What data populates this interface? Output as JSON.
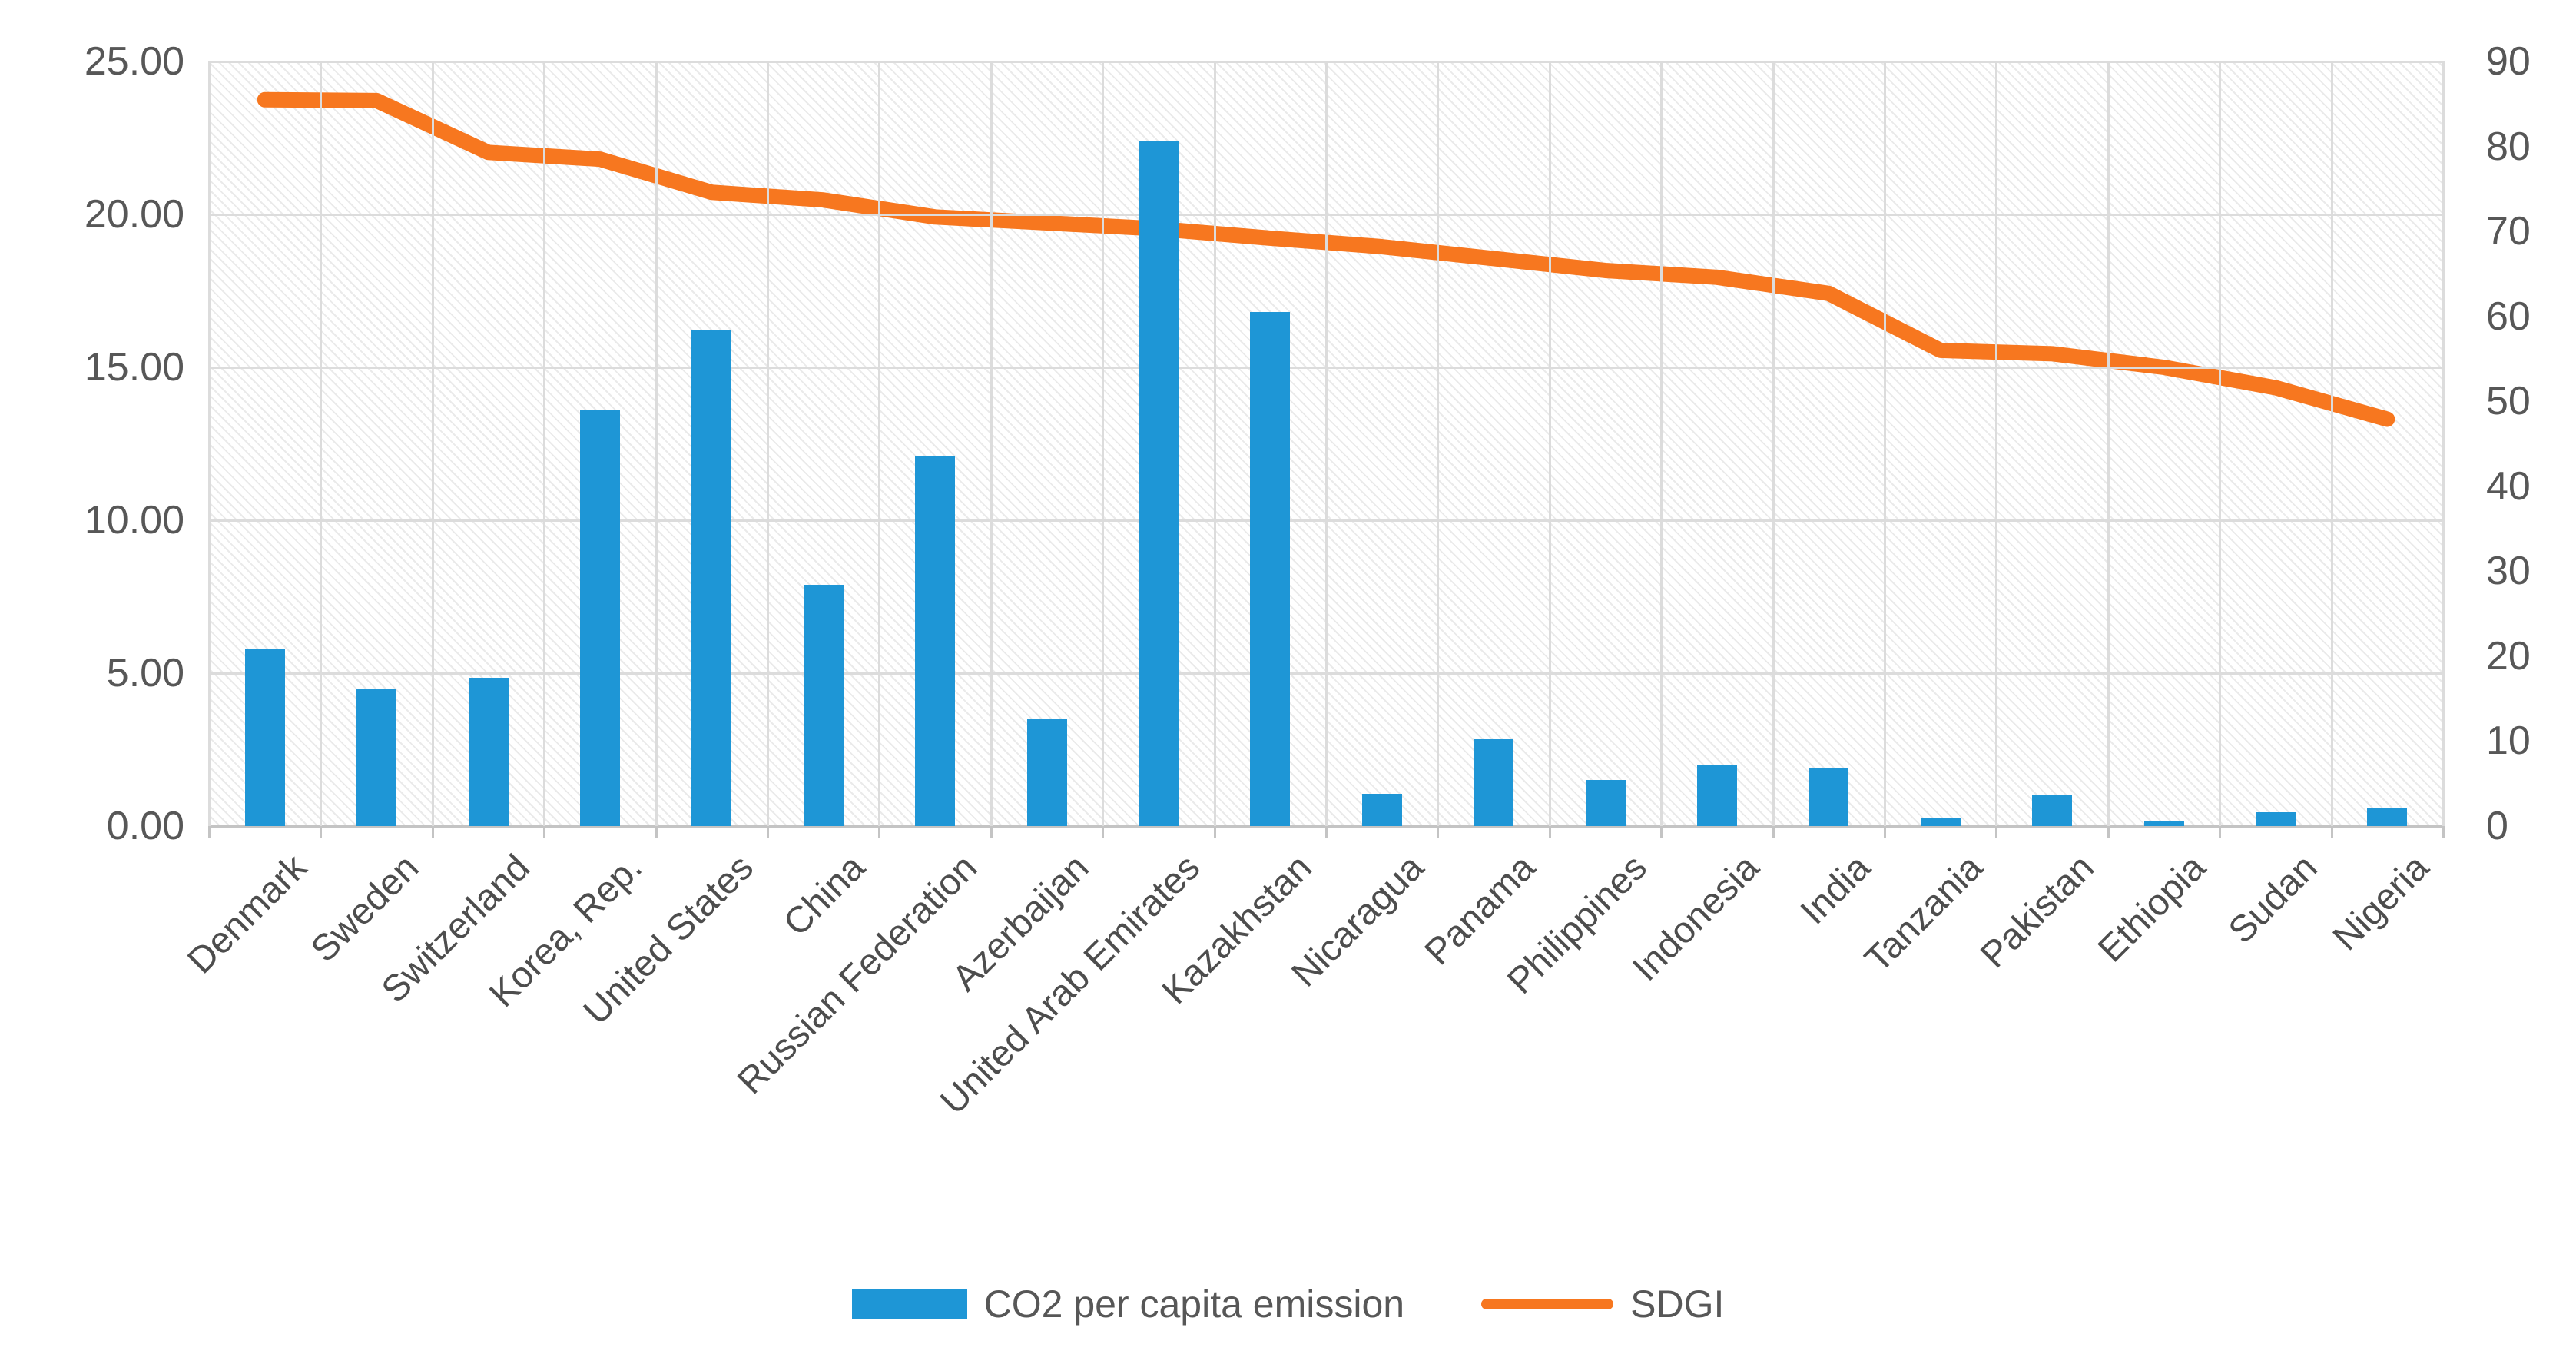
{
  "chart_data": {
    "type": "bar",
    "subtype": "combo-bar-line-dual-axis",
    "title": "",
    "categories": [
      "Denmark",
      "Sweden",
      "Switzerland",
      "Korea, Rep.",
      "United States",
      "China",
      "Russian Federation",
      "Azerbaijan",
      "United Arab Emirates",
      "Kazakhstan",
      "Nicaragua",
      "Panama",
      "Philippines",
      "Indonesia",
      "India",
      "Tanzania",
      "Pakistan",
      "Ethiopia",
      "Sudan",
      "Nigeria"
    ],
    "series": [
      {
        "name": "CO2 per capita emission",
        "type": "bar",
        "axis": "left",
        "values": [
          5.8,
          4.5,
          4.85,
          13.6,
          16.2,
          7.9,
          12.1,
          3.5,
          22.4,
          16.8,
          1.05,
          2.85,
          1.5,
          2.0,
          1.9,
          0.25,
          1.0,
          0.15,
          0.45,
          0.6
        ]
      },
      {
        "name": "SDGI",
        "type": "line",
        "axis": "right",
        "values": [
          85.5,
          85.4,
          79.3,
          78.5,
          74.6,
          73.7,
          71.7,
          71.0,
          70.3,
          69.2,
          68.2,
          66.8,
          65.4,
          64.6,
          62.7,
          56.0,
          55.6,
          54.0,
          51.6,
          47.9
        ]
      }
    ],
    "left_axis": {
      "min": 0,
      "max": 25,
      "tick_labels": [
        "25.00",
        "20.00",
        "15.00",
        "10.00",
        "5.00",
        "0.00"
      ]
    },
    "right_axis": {
      "min": 0,
      "max": 90,
      "tick_labels": [
        "90",
        "80",
        "70",
        "60",
        "50",
        "40",
        "30",
        "20",
        "10",
        "0"
      ]
    },
    "grid": "on",
    "plot_fill": "diagonal-hatch",
    "legend_position": "bottom",
    "colors": {
      "bar": "#1E96D6",
      "line": "#F7771F",
      "gridline": "#DCDCDC",
      "axis_text": "#575757"
    }
  },
  "legend": {
    "bar_label": "CO2 per capita emission",
    "line_label": "SDGI"
  }
}
